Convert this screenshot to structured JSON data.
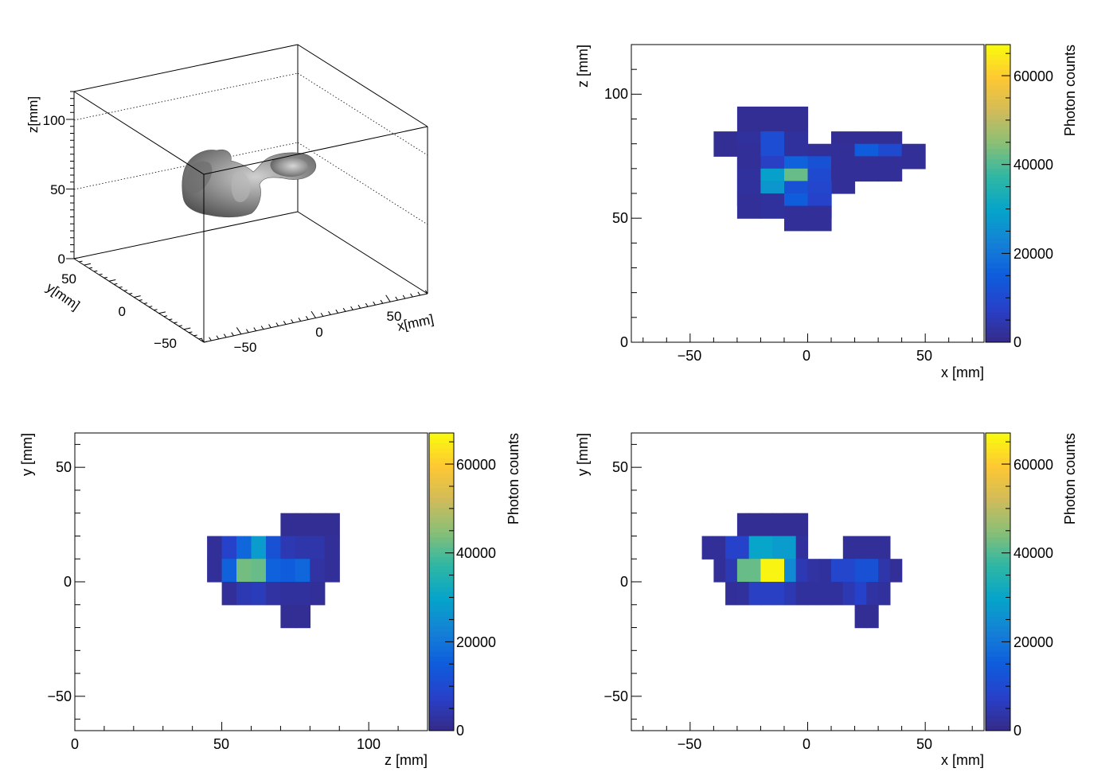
{
  "colorbar": {
    "label": "Photon counts",
    "ticks": [
      "0",
      "20000",
      "40000",
      "60000"
    ],
    "min": 0,
    "max": 67000,
    "palette": [
      "#352a87",
      "#2840c8",
      "#0f5cdd",
      "#1481d6",
      "#06a4ca",
      "#2eb7a4",
      "#87bf77",
      "#d1bb59",
      "#fec832",
      "#f9fb0e"
    ]
  },
  "chart_data": [
    {
      "type": "scatter",
      "title": "",
      "subtype": "3d-isosurface",
      "xlabel": "x[mm]",
      "ylabel": "y[mm]",
      "zlabel": "z[mm]",
      "xticks": [
        "−50",
        "0",
        "50"
      ],
      "yticks": [
        "−50",
        "0",
        "50"
      ],
      "zticks": [
        "0",
        "50",
        "100"
      ],
      "xlim": [
        -75,
        75
      ],
      "ylim": [
        -65,
        65
      ],
      "zlim": [
        0,
        120
      ],
      "surface_color": "#7f7f7f"
    },
    {
      "type": "heatmap",
      "title": "",
      "xlabel": "x [mm]",
      "ylabel": "z [mm]",
      "xlim": [
        -75,
        75
      ],
      "ylim": [
        0,
        120
      ],
      "xticks": [
        "−50",
        "0",
        "50"
      ],
      "yticks": [
        "0",
        "50",
        "100"
      ],
      "bin_width": [
        10,
        10
      ],
      "bins": [
        {
          "x": -30,
          "y": 85,
          "v": 1500
        },
        {
          "x": -20,
          "y": 85,
          "v": 1500
        },
        {
          "x": -10,
          "y": 85,
          "v": 1500
        },
        {
          "x": -40,
          "y": 75,
          "v": 1500
        },
        {
          "x": -30,
          "y": 75,
          "v": 2500
        },
        {
          "x": -20,
          "y": 75,
          "v": 11000
        },
        {
          "x": -10,
          "y": 75,
          "v": 2500
        },
        {
          "x": 10,
          "y": 75,
          "v": 1500
        },
        {
          "x": 20,
          "y": 75,
          "v": 1500
        },
        {
          "x": 30,
          "y": 75,
          "v": 1500
        },
        {
          "x": -30,
          "y": 70,
          "v": 2000
        },
        {
          "x": -20,
          "y": 70,
          "v": 11000
        },
        {
          "x": -10,
          "y": 70,
          "v": 2500
        },
        {
          "x": 0,
          "y": 70,
          "v": 2000
        },
        {
          "x": 10,
          "y": 70,
          "v": 2000
        },
        {
          "x": 20,
          "y": 70,
          "v": 15000
        },
        {
          "x": 30,
          "y": 70,
          "v": 10000
        },
        {
          "x": 40,
          "y": 70,
          "v": 2000
        },
        {
          "x": -30,
          "y": 65,
          "v": 2000
        },
        {
          "x": -20,
          "y": 65,
          "v": 7000
        },
        {
          "x": -10,
          "y": 65,
          "v": 16000
        },
        {
          "x": 0,
          "y": 65,
          "v": 12000
        },
        {
          "x": 10,
          "y": 65,
          "v": 2000
        },
        {
          "x": 20,
          "y": 65,
          "v": 2000
        },
        {
          "x": 30,
          "y": 65,
          "v": 2000
        },
        {
          "x": -30,
          "y": 60,
          "v": 2500
        },
        {
          "x": -20,
          "y": 60,
          "v": 29000
        },
        {
          "x": -10,
          "y": 60,
          "v": 42000
        },
        {
          "x": 0,
          "y": 60,
          "v": 10000
        },
        {
          "x": 10,
          "y": 60,
          "v": 2000
        },
        {
          "x": -30,
          "y": 55,
          "v": 2500
        },
        {
          "x": -20,
          "y": 55,
          "v": 27000
        },
        {
          "x": -10,
          "y": 55,
          "v": 12000
        },
        {
          "x": 0,
          "y": 55,
          "v": 9000
        },
        {
          "x": -30,
          "y": 50,
          "v": 2000
        },
        {
          "x": -20,
          "y": 50,
          "v": 2500
        },
        {
          "x": -10,
          "y": 50,
          "v": 15000
        },
        {
          "x": 0,
          "y": 50,
          "v": 8000
        },
        {
          "x": -10,
          "y": 45,
          "v": 2000
        },
        {
          "x": 0,
          "y": 45,
          "v": 2000
        }
      ]
    },
    {
      "type": "heatmap",
      "title": "",
      "xlabel": "z [mm]",
      "ylabel": "y [mm]",
      "xlim": [
        0,
        120
      ],
      "ylim": [
        -65,
        65
      ],
      "xticks": [
        "0",
        "50",
        "100"
      ],
      "yticks": [
        "−50",
        "0",
        "50"
      ],
      "bin_width": [
        5,
        10
      ],
      "bins": [
        {
          "x": 70,
          "y": 20,
          "v": 1500
        },
        {
          "x": 75,
          "y": 20,
          "v": 1500
        },
        {
          "x": 80,
          "y": 20,
          "v": 1500
        },
        {
          "x": 85,
          "y": 20,
          "v": 1500
        },
        {
          "x": 45,
          "y": 10,
          "v": 2000
        },
        {
          "x": 50,
          "y": 10,
          "v": 8000
        },
        {
          "x": 55,
          "y": 10,
          "v": 17000
        },
        {
          "x": 60,
          "y": 10,
          "v": 28000
        },
        {
          "x": 65,
          "y": 10,
          "v": 12000
        },
        {
          "x": 70,
          "y": 10,
          "v": 5000
        },
        {
          "x": 75,
          "y": 10,
          "v": 4000
        },
        {
          "x": 80,
          "y": 10,
          "v": 4000
        },
        {
          "x": 85,
          "y": 10,
          "v": 2000
        },
        {
          "x": 45,
          "y": 0,
          "v": 2000
        },
        {
          "x": 50,
          "y": 0,
          "v": 16000
        },
        {
          "x": 55,
          "y": 0,
          "v": 43000
        },
        {
          "x": 60,
          "y": 0,
          "v": 42000
        },
        {
          "x": 65,
          "y": 0,
          "v": 16000
        },
        {
          "x": 70,
          "y": 0,
          "v": 15000
        },
        {
          "x": 75,
          "y": 0,
          "v": 17000
        },
        {
          "x": 80,
          "y": 0,
          "v": 3000
        },
        {
          "x": 85,
          "y": 0,
          "v": 2000
        },
        {
          "x": 50,
          "y": -10,
          "v": 2000
        },
        {
          "x": 55,
          "y": -10,
          "v": 5000
        },
        {
          "x": 60,
          "y": -10,
          "v": 6000
        },
        {
          "x": 65,
          "y": -10,
          "v": 3000
        },
        {
          "x": 70,
          "y": -10,
          "v": 2500
        },
        {
          "x": 75,
          "y": -10,
          "v": 2500
        },
        {
          "x": 80,
          "y": -10,
          "v": 2000
        },
        {
          "x": 70,
          "y": -20,
          "v": 1500
        },
        {
          "x": 75,
          "y": -20,
          "v": 1500
        }
      ]
    },
    {
      "type": "heatmap",
      "title": "",
      "xlabel": "x [mm]",
      "ylabel": "y [mm]",
      "xlim": [
        -75,
        75
      ],
      "ylim": [
        -65,
        65
      ],
      "xticks": [
        "−50",
        "0",
        "50"
      ],
      "yticks": [
        "−50",
        "0",
        "50"
      ],
      "bin_width": [
        5,
        10
      ],
      "bins": [
        {
          "x": -30,
          "y": 20,
          "v": 1500
        },
        {
          "x": -25,
          "y": 20,
          "v": 1500
        },
        {
          "x": -20,
          "y": 20,
          "v": 1500
        },
        {
          "x": -15,
          "y": 20,
          "v": 1500
        },
        {
          "x": -10,
          "y": 20,
          "v": 1500
        },
        {
          "x": -5,
          "y": 20,
          "v": 1500
        },
        {
          "x": -45,
          "y": 10,
          "v": 2000
        },
        {
          "x": -40,
          "y": 10,
          "v": 2000
        },
        {
          "x": -35,
          "y": 10,
          "v": 8000
        },
        {
          "x": -30,
          "y": 10,
          "v": 8000
        },
        {
          "x": -25,
          "y": 10,
          "v": 30000
        },
        {
          "x": -20,
          "y": 10,
          "v": 30000
        },
        {
          "x": -15,
          "y": 10,
          "v": 28000
        },
        {
          "x": -10,
          "y": 10,
          "v": 28000
        },
        {
          "x": -5,
          "y": 10,
          "v": 2500
        },
        {
          "x": 15,
          "y": 10,
          "v": 2000
        },
        {
          "x": 20,
          "y": 10,
          "v": 2000
        },
        {
          "x": 25,
          "y": 10,
          "v": 2000
        },
        {
          "x": 30,
          "y": 10,
          "v": 2000
        },
        {
          "x": -40,
          "y": 0,
          "v": 2000
        },
        {
          "x": -35,
          "y": 0,
          "v": 5000
        },
        {
          "x": -30,
          "y": 0,
          "v": 42000
        },
        {
          "x": -25,
          "y": 0,
          "v": 42000
        },
        {
          "x": -20,
          "y": 0,
          "v": 66000
        },
        {
          "x": -15,
          "y": 0,
          "v": 66000
        },
        {
          "x": -10,
          "y": 0,
          "v": 24000
        },
        {
          "x": -5,
          "y": 0,
          "v": 5000
        },
        {
          "x": 0,
          "y": 0,
          "v": 3000
        },
        {
          "x": 5,
          "y": 0,
          "v": 2500
        },
        {
          "x": 10,
          "y": 0,
          "v": 9000
        },
        {
          "x": 15,
          "y": 0,
          "v": 9000
        },
        {
          "x": 20,
          "y": 0,
          "v": 12000
        },
        {
          "x": 25,
          "y": 0,
          "v": 12000
        },
        {
          "x": 30,
          "y": 0,
          "v": 4000
        },
        {
          "x": 35,
          "y": 0,
          "v": 2000
        },
        {
          "x": -35,
          "y": -10,
          "v": 2000
        },
        {
          "x": -30,
          "y": -10,
          "v": 2500
        },
        {
          "x": -25,
          "y": -10,
          "v": 7000
        },
        {
          "x": -20,
          "y": -10,
          "v": 7000
        },
        {
          "x": -15,
          "y": -10,
          "v": 7000
        },
        {
          "x": -10,
          "y": -10,
          "v": 5000
        },
        {
          "x": -5,
          "y": -10,
          "v": 2500
        },
        {
          "x": 0,
          "y": -10,
          "v": 2500
        },
        {
          "x": 5,
          "y": -10,
          "v": 2500
        },
        {
          "x": 10,
          "y": -10,
          "v": 2500
        },
        {
          "x": 15,
          "y": -10,
          "v": 5000
        },
        {
          "x": 20,
          "y": -10,
          "v": 8000
        },
        {
          "x": 25,
          "y": -10,
          "v": 3000
        },
        {
          "x": 30,
          "y": -10,
          "v": 2500
        },
        {
          "x": 20,
          "y": -20,
          "v": 1500
        },
        {
          "x": 25,
          "y": -20,
          "v": 1500
        }
      ]
    }
  ]
}
